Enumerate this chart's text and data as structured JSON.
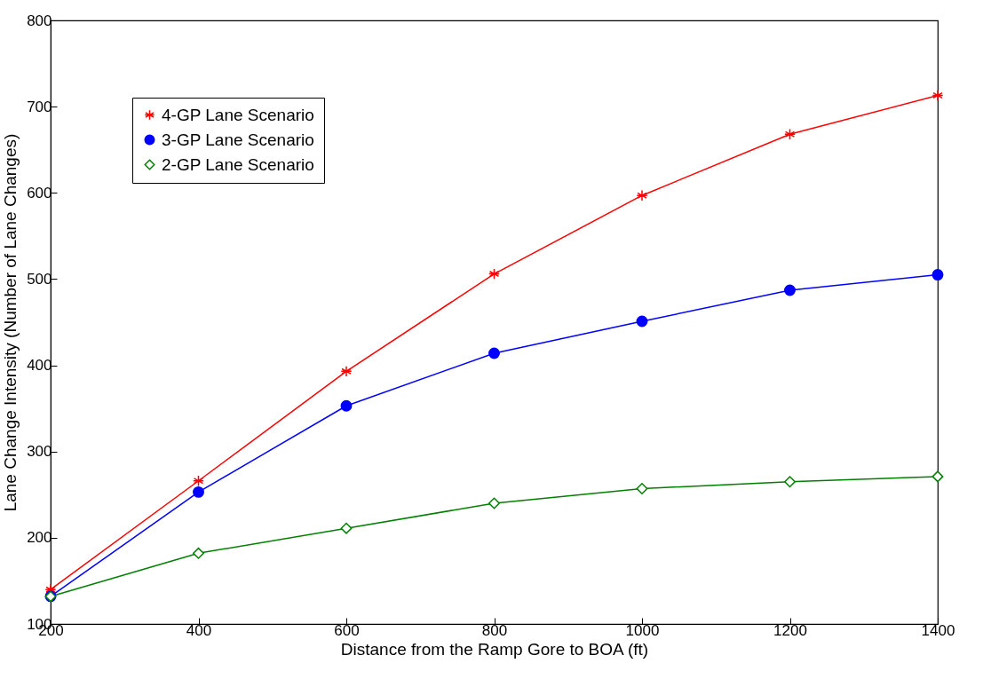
{
  "chart_data": {
    "type": "line",
    "xlabel": "Distance from the Ramp Gore to BOA (ft)",
    "ylabel": "Lane Change Intensity (Number of Lane Changes)",
    "x": [
      200,
      400,
      600,
      800,
      1000,
      1200,
      1400
    ],
    "series": [
      {
        "name": "4-GP Lane Scenario",
        "color": "#ff0000",
        "marker": "cross",
        "values": [
          140,
          266,
          393,
          506,
          597,
          668,
          713
        ]
      },
      {
        "name": "3-GP Lane Scenario",
        "color": "#0000ff",
        "marker": "circle",
        "values": [
          132,
          253,
          353,
          414,
          451,
          487,
          505
        ]
      },
      {
        "name": "2-GP Lane Scenario",
        "color": "#008000",
        "marker": "diamond",
        "values": [
          132,
          182,
          211,
          240,
          257,
          265,
          271
        ]
      }
    ],
    "xlim": [
      200,
      1400
    ],
    "xticks": [
      200,
      400,
      600,
      800,
      1000,
      1200,
      1400
    ],
    "ylim": [
      100,
      800
    ],
    "yticks": [
      100,
      200,
      300,
      400,
      500,
      600,
      700,
      800
    ],
    "grid": false,
    "legend": "top left",
    "line_style": "solid"
  }
}
